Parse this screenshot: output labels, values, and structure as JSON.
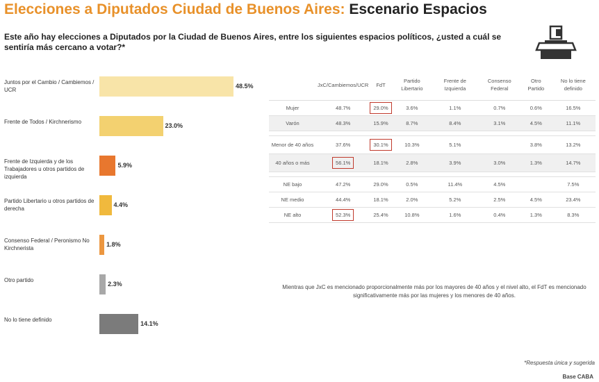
{
  "header": {
    "title_main": "Elecciones a Diputados Ciudad de Buenos Aires:",
    "title_sub": "Escenario Espacios",
    "question": "Este año hay elecciones a Diputados por la Ciudad de Buenos Aires, entre los siguientes espacios políticos, ¿usted a cuál se sentiría más cercano a votar?*"
  },
  "icons": {
    "vote": "ballot-box-icon"
  },
  "chart_data": {
    "type": "bar",
    "orientation": "horizontal",
    "categories": [
      "Juntos por el Cambio / Cambiemos / UCR",
      "Frente de Todos / Kirchnerismo",
      "Frente de Izquierda y de los Trabajadores u otros partidos de izquierda",
      "Partido Libertario u otros partidos de derecha",
      "Consenso Federal / Peronismo No Kirchnerista",
      "Otro partido",
      "No lo tiene definido"
    ],
    "values": [
      48.5,
      23.0,
      5.9,
      4.4,
      1.8,
      2.3,
      14.1
    ],
    "value_labels": [
      "48.5%",
      "23.0%",
      "5.9%",
      "4.4%",
      "1.8%",
      "2.3%",
      "14.1%"
    ],
    "colors": [
      "#f8e4a8",
      "#f3d170",
      "#e8772e",
      "#f0b93d",
      "#ec9740",
      "#a8a8a8",
      "#7b7b7b"
    ]
  },
  "table": {
    "columns": [
      "JxC/Cambiemos/UCR",
      "FdT",
      "Partido Libertario",
      "Frente de Izquierda",
      "Consenso Federal",
      "Otro Partido",
      "No lo tiene definido"
    ],
    "rows": [
      {
        "label": "Mujer",
        "cells": [
          "48.7%",
          "29.0%",
          "3.6%",
          "1.1%",
          "0.7%",
          "0.6%",
          "16.5%"
        ]
      },
      {
        "label": "Varón",
        "cells": [
          "48.3%",
          "15.9%",
          "8.7%",
          "8.4%",
          "3.1%",
          "4.5%",
          "11.1%"
        ]
      },
      {
        "label": "Menor de 40 años",
        "cells": [
          "37.6%",
          "30.1%",
          "10.3%",
          "5.1%",
          "",
          "3.8%",
          "13.2%"
        ]
      },
      {
        "label": "40 años o más",
        "cells": [
          "56.1%",
          "18.1%",
          "2.8%",
          "3.9%",
          "3.0%",
          "1.3%",
          "14.7%"
        ]
      },
      {
        "label": "NE bajo",
        "cells": [
          "47.2%",
          "29.0%",
          "0.5%",
          "11.4%",
          "4.5%",
          "",
          "7.5%"
        ]
      },
      {
        "label": "NE medio",
        "cells": [
          "44.4%",
          "18.1%",
          "2.0%",
          "5.2%",
          "2.5%",
          "4.5%",
          "23.4%"
        ]
      },
      {
        "label": "NE alto",
        "cells": [
          "52.3%",
          "25.4%",
          "10.8%",
          "1.6%",
          "0.4%",
          "1.3%",
          "8.3%"
        ]
      }
    ]
  },
  "note": "Mientras que JxC es mencionado proporcionalmente más por los mayores de 40 años y el nivel alto, el FdT es mencionado significativamente más por las mujeres y los menores de 40 años.",
  "footer": {
    "response_note": "*Respuesta única y sugerida",
    "base": "Base CABA"
  }
}
